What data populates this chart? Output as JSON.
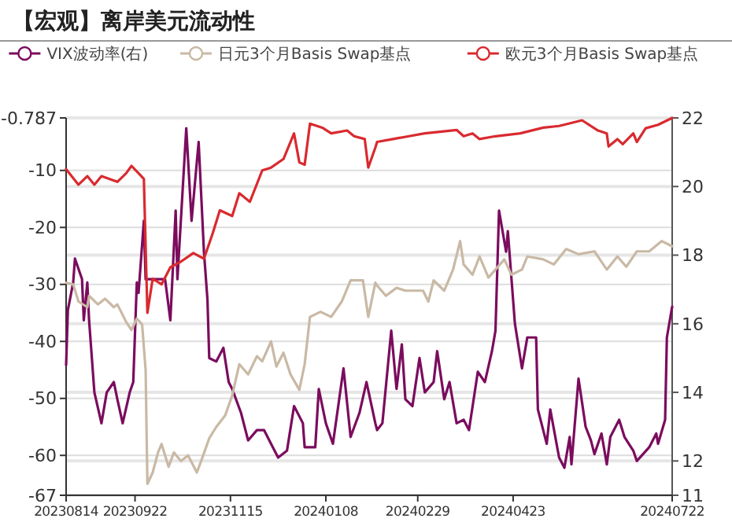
{
  "chart_data": {
    "type": "line",
    "title": "【宏观】离岸美元流动性",
    "legend": "top",
    "grid": "y",
    "line_style": "solid",
    "xlim": [
      "2023-08-14",
      "2024-07-22"
    ],
    "xticks": [
      {
        "value": "2023-08-14",
        "label": "20230814"
      },
      {
        "value": "2023-09-22",
        "label": "20230922"
      },
      {
        "value": "2023-11-15",
        "label": "20231115"
      },
      {
        "value": "2024-01-08",
        "label": "20240108"
      },
      {
        "value": "2024-02-29",
        "label": "20240229"
      },
      {
        "value": "2024-04-23",
        "label": "20240423"
      },
      {
        "value": "2024-07-22",
        "label": "20240722"
      }
    ],
    "ylim": [
      -67,
      -0.787
    ],
    "yticks": [
      -67,
      -60,
      -50,
      -40,
      -30,
      -20,
      -10,
      -0.787
    ],
    "y2lim": [
      11,
      22
    ],
    "y2ticks": [
      11,
      12,
      14,
      16,
      18,
      20,
      22
    ],
    "series": [
      {
        "name": "VIX波动率(右)",
        "color": "#7b0c5e",
        "axis": "y2",
        "x": [
          "2023-08-14",
          "2023-08-15",
          "2023-08-18",
          "2023-08-19",
          "2023-08-23",
          "2023-08-24",
          "2023-08-26",
          "2023-08-27",
          "2023-08-30",
          "2023-09-03",
          "2023-09-06",
          "2023-09-10",
          "2023-09-12",
          "2023-09-15",
          "2023-09-19",
          "2023-09-21",
          "2023-09-23",
          "2023-09-24",
          "2023-09-27",
          "2023-09-28",
          "2023-09-30",
          "2023-10-09",
          "2023-10-12",
          "2023-10-15",
          "2023-10-16",
          "2023-10-21",
          "2023-10-24",
          "2023-10-28",
          "2023-10-31",
          "2023-11-02",
          "2023-11-03",
          "2023-11-07",
          "2023-11-11",
          "2023-11-14",
          "2023-11-16",
          "2023-11-21",
          "2023-11-25",
          "2023-11-30",
          "2023-12-04",
          "2023-12-09",
          "2023-12-12",
          "2023-12-17",
          "2023-12-21",
          "2023-12-26",
          "2023-12-27",
          "2024-01-02",
          "2024-01-04",
          "2024-01-08",
          "2024-01-12",
          "2024-01-18",
          "2024-01-22",
          "2024-01-27",
          "2024-01-31",
          "2024-02-05",
          "2024-02-06",
          "2024-02-09",
          "2024-02-14",
          "2024-02-17",
          "2024-02-20",
          "2024-02-22",
          "2024-02-26",
          "2024-03-01",
          "2024-03-04",
          "2024-03-09",
          "2024-03-11",
          "2024-03-15",
          "2024-03-18",
          "2024-03-22",
          "2024-03-26",
          "2024-03-29",
          "2024-04-03",
          "2024-04-07",
          "2024-04-11",
          "2024-04-13",
          "2024-04-15",
          "2024-04-19",
          "2024-04-20",
          "2024-04-24",
          "2024-04-28",
          "2024-05-01",
          "2024-05-06",
          "2024-05-07",
          "2024-05-12",
          "2024-05-14",
          "2024-05-19",
          "2024-05-22",
          "2024-05-25",
          "2024-05-26",
          "2024-05-30",
          "2024-06-03",
          "2024-06-06",
          "2024-06-08",
          "2024-06-12",
          "2024-06-15",
          "2024-06-17",
          "2024-06-22",
          "2024-06-25",
          "2024-06-30",
          "2024-07-02",
          "2024-07-09",
          "2024-07-13",
          "2024-07-14",
          "2024-07-18",
          "2024-07-19",
          "2024-07-22"
        ],
        "values": [
          14.8,
          16.4,
          17.2,
          17.9,
          17.3,
          16.1,
          17.2,
          16.1,
          14.0,
          13.1,
          14.0,
          14.3,
          13.8,
          13.1,
          14.0,
          14.3,
          17.2,
          16.9,
          19.0,
          17.3,
          17.3,
          17.3,
          16.1,
          19.3,
          17.3,
          21.7,
          19.0,
          21.3,
          18.1,
          16.7,
          15.0,
          14.9,
          15.3,
          14.3,
          14.1,
          13.4,
          12.6,
          12.9,
          12.9,
          12.4,
          12.1,
          12.3,
          13.6,
          13.1,
          12.4,
          12.4,
          14.1,
          13.1,
          12.5,
          14.7,
          12.7,
          13.4,
          14.3,
          13.1,
          12.9,
          13.1,
          15.8,
          14.1,
          15.4,
          13.8,
          13.6,
          15.0,
          14.0,
          14.3,
          15.2,
          13.8,
          14.3,
          13.1,
          13.2,
          12.9,
          14.6,
          14.3,
          15.2,
          15.8,
          19.3,
          18.1,
          18.7,
          16.0,
          14.7,
          15.6,
          15.6,
          13.5,
          12.5,
          13.5,
          12.1,
          11.8,
          12.7,
          11.9,
          14.4,
          13.0,
          12.6,
          12.2,
          12.8,
          11.9,
          12.7,
          13.2,
          12.7,
          12.3,
          12.0,
          12.4,
          12.8,
          12.5,
          13.2,
          15.6,
          16.5
        ]
      },
      {
        "name": "日元3个月Basis Swap基点",
        "color": "#c9b9a5",
        "x": [
          "2023-08-14",
          "2023-08-18",
          "2023-08-21",
          "2023-08-26",
          "2023-08-27",
          "2023-09-01",
          "2023-09-05",
          "2023-09-10",
          "2023-09-12",
          "2023-09-17",
          "2023-09-20",
          "2023-09-23",
          "2023-09-26",
          "2023-09-28",
          "2023-09-29",
          "2023-10-02",
          "2023-10-05",
          "2023-10-07",
          "2023-10-11",
          "2023-10-14",
          "2023-10-18",
          "2023-10-22",
          "2023-10-27",
          "2023-10-30",
          "2023-11-03",
          "2023-11-07",
          "2023-11-12",
          "2023-11-16",
          "2023-11-20",
          "2023-11-25",
          "2023-11-30",
          "2023-12-03",
          "2023-12-08",
          "2023-12-11",
          "2023-12-15",
          "2023-12-19",
          "2023-12-24",
          "2023-12-27",
          "2023-12-30",
          "2024-01-05",
          "2024-01-11",
          "2024-01-17",
          "2024-01-22",
          "2024-01-29",
          "2024-02-01",
          "2024-02-05",
          "2024-02-06",
          "2024-02-11",
          "2024-02-17",
          "2024-02-22",
          "2024-03-03",
          "2024-03-06",
          "2024-03-09",
          "2024-03-15",
          "2024-03-20",
          "2024-03-24",
          "2024-03-26",
          "2024-03-31",
          "2024-04-04",
          "2024-04-09",
          "2024-04-13",
          "2024-04-18",
          "2024-04-22",
          "2024-04-28",
          "2024-05-01",
          "2024-05-10",
          "2024-05-16",
          "2024-05-23",
          "2024-05-30",
          "2024-06-08",
          "2024-06-15",
          "2024-06-21",
          "2024-06-26",
          "2024-07-02",
          "2024-07-09",
          "2024-07-16",
          "2024-07-22"
        ],
        "values": [
          -29.7,
          -30,
          -33,
          -34,
          -32,
          -33.5,
          -32.5,
          -34,
          -33.5,
          -36.6,
          -38,
          -36,
          -37,
          -45,
          -65,
          -63,
          -59.5,
          -58,
          -62,
          -59.5,
          -61,
          -60,
          -63,
          -60.5,
          -57,
          -55,
          -53,
          -49.5,
          -44,
          -45.8,
          -42.6,
          -43.5,
          -40,
          -44.4,
          -42,
          -45.8,
          -48.5,
          -44,
          -35.7,
          -34.8,
          -35.7,
          -33,
          -29.3,
          -29.3,
          -35.7,
          -29.7,
          -30.2,
          -32,
          -30.6,
          -31.1,
          -31.1,
          -33,
          -29.3,
          -31.1,
          -27.4,
          -22.4,
          -26.5,
          -28.3,
          -25.1,
          -28.8,
          -27.4,
          -25.6,
          -28.3,
          -27.4,
          -25.1,
          -25.6,
          -26.5,
          -23.8,
          -24.7,
          -24.2,
          -27.4,
          -25.1,
          -26.9,
          -24.2,
          -24.2,
          -22.4,
          -23.3
        ]
      },
      {
        "name": "欧元3个月Basis Swap基点",
        "color": "#d92a2f",
        "x": [
          "2023-08-14",
          "2023-08-21",
          "2023-08-26",
          "2023-08-30",
          "2023-09-03",
          "2023-09-12",
          "2023-09-17",
          "2023-09-20",
          "2023-09-24",
          "2023-09-27",
          "2023-09-29",
          "2023-10-02",
          "2023-10-07",
          "2023-10-12",
          "2023-10-18",
          "2023-10-25",
          "2023-10-31",
          "2023-11-05",
          "2023-11-09",
          "2023-11-16",
          "2023-11-20",
          "2023-11-26",
          "2023-12-03",
          "2023-12-08",
          "2023-12-15",
          "2023-12-21",
          "2023-12-24",
          "2023-12-27",
          "2023-12-30",
          "2024-01-06",
          "2024-01-11",
          "2024-01-20",
          "2024-01-24",
          "2024-01-30",
          "2024-02-01",
          "2024-02-05",
          "2024-02-06",
          "2024-02-15",
          "2024-02-24",
          "2024-03-04",
          "2024-03-22",
          "2024-03-26",
          "2024-03-31",
          "2024-04-04",
          "2024-04-13",
          "2024-04-27",
          "2024-05-10",
          "2024-05-19",
          "2024-06-01",
          "2024-06-10",
          "2024-06-15",
          "2024-06-16",
          "2024-06-21",
          "2024-06-24",
          "2024-06-30",
          "2024-07-02",
          "2024-07-07",
          "2024-07-14",
          "2024-07-22"
        ],
        "values": [
          -9.8,
          -12.5,
          -11,
          -12.5,
          -11,
          -12,
          -10.5,
          -9.2,
          -10.5,
          -11.5,
          -35,
          -29,
          -30,
          -27,
          -26,
          -24.5,
          -25.5,
          -21,
          -17,
          -18,
          -14,
          -15.5,
          -10,
          -9.5,
          -8,
          -3.5,
          -8.6,
          -9,
          -1.8,
          -2.5,
          -3.5,
          -3,
          -4,
          -4.5,
          -9.5,
          -6,
          -5,
          -4.5,
          -4,
          -3.5,
          -2.9,
          -4,
          -3.5,
          -4.5,
          -4,
          -3.5,
          -2.5,
          -2.2,
          -1.2,
          -3,
          -3.5,
          -5.8,
          -4.5,
          -5.4,
          -3.5,
          -5,
          -2.6,
          -2,
          -0.787
        ]
      }
    ]
  }
}
